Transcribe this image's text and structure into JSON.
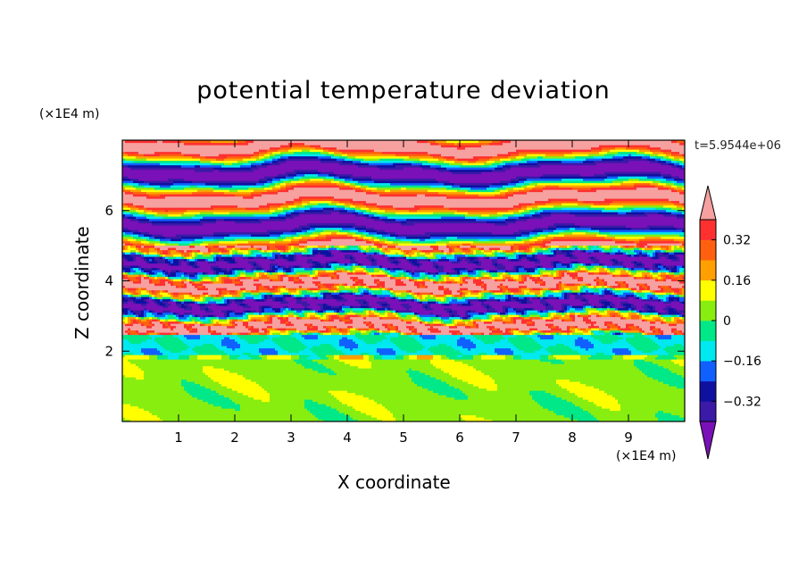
{
  "chart_data": {
    "type": "heatmap",
    "title": "potential temperature deviation",
    "xlabel": "X coordinate",
    "ylabel": "Z coordinate",
    "x_unit": "(×1E4 m)",
    "y_unit": "(×1E4 m)",
    "time_label": "t=5.9544e+06",
    "xlim": [
      0,
      10
    ],
    "ylim": [
      0,
      8
    ],
    "x_ticks": [
      1,
      2,
      3,
      4,
      5,
      6,
      7,
      8,
      9
    ],
    "y_ticks": [
      2,
      4,
      6
    ],
    "colorbar": {
      "levels": [
        -0.4,
        -0.32,
        -0.24,
        -0.16,
        -0.08,
        0,
        0.08,
        0.16,
        0.24,
        0.32,
        0.4
      ],
      "tick_labels": [
        "0.32",
        "0.16",
        "0",
        "−0.16",
        "−0.32"
      ],
      "tick_values": [
        0.32,
        0.16,
        0,
        -0.16,
        -0.32
      ],
      "colors": [
        "#7a10b8",
        "#3a1aa6",
        "#1010a0",
        "#1060ff",
        "#00e8f0",
        "#00e888",
        "#88ee10",
        "#ffff00",
        "#ffa000",
        "#ff6010",
        "#ff3030",
        "#f6a0a0"
      ],
      "extend": "both"
    },
    "field_description_regions": [
      {
        "z_range": [
          0,
          1.9
        ],
        "dominant_value": 0.04
      },
      {
        "z_range": [
          1.9,
          2.5
        ],
        "dominant_value": -0.1
      },
      {
        "z_range": [
          2.5,
          5.0
        ],
        "dominant_value": "alternating layers, turbulent"
      },
      {
        "z_range": [
          5.0,
          8.0
        ],
        "dominant_value": "alternating ±0.4 layers"
      }
    ],
    "grid": false
  }
}
